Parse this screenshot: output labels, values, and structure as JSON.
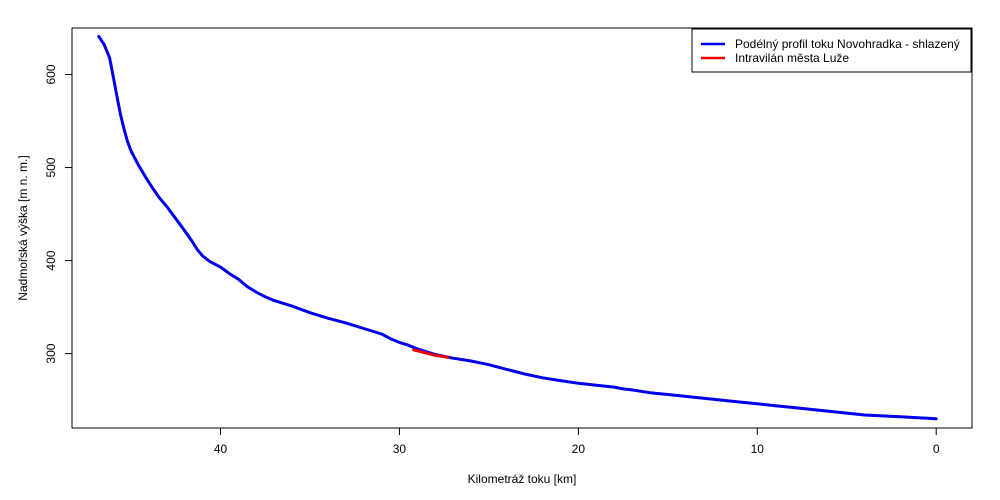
{
  "chart_data": {
    "type": "line",
    "title": "",
    "xlabel": "Kilometráž toku [km]",
    "ylabel": "Nadmořská výška [m n. m.]",
    "xlim": [
      48.3,
      -2.0
    ],
    "ylim": [
      220,
      650
    ],
    "x_reversed": true,
    "x_ticks": [
      40,
      30,
      20,
      10,
      0
    ],
    "y_ticks": [
      300,
      400,
      500,
      600
    ],
    "grid": false,
    "legend_position": "top-right",
    "series": [
      {
        "name": "Podélný profil toku Novohradka - shlazený",
        "color": "#0000ee",
        "x": [
          46.8,
          46.5,
          46.2,
          46.0,
          45.8,
          45.6,
          45.4,
          45.2,
          45.0,
          44.6,
          44.2,
          43.8,
          43.4,
          43.0,
          42.5,
          42.0,
          41.6,
          41.3,
          41.0,
          40.6,
          40.0,
          39.5,
          39.0,
          38.5,
          38.0,
          37.5,
          37.0,
          36.0,
          35.0,
          34.0,
          33.0,
          32.0,
          31.0,
          30.5,
          30.0,
          29.5,
          29.0,
          28.5,
          28.0,
          27.5,
          27.0,
          26.0,
          25.0,
          24.0,
          23.0,
          22.0,
          21.0,
          20.0,
          19.0,
          18.0,
          17.5,
          17.0,
          16.0,
          15.0,
          14.0,
          13.0,
          12.0,
          11.0,
          10.0,
          9.0,
          8.0,
          7.0,
          6.0,
          5.0,
          4.0,
          3.0,
          2.0,
          1.0,
          0.0
        ],
        "y": [
          641,
          632,
          618,
          598,
          578,
          558,
          542,
          528,
          518,
          503,
          490,
          478,
          467,
          458,
          445,
          432,
          421,
          412,
          405,
          399,
          393,
          386,
          380,
          372,
          366,
          361,
          357,
          351,
          344,
          338,
          333,
          327,
          321,
          316,
          312,
          309,
          305,
          302,
          299,
          297,
          295,
          292,
          288,
          283,
          278,
          274,
          271,
          268,
          266,
          264,
          262,
          261,
          258,
          256,
          254,
          252,
          250,
          248,
          246,
          244,
          242,
          240,
          238,
          236,
          234,
          233,
          232,
          231,
          230
        ]
      },
      {
        "name": "Intravilán města Luže",
        "color": "#ee0000",
        "x": [
          29.2,
          28.8,
          28.4,
          28.0,
          27.6,
          27.3
        ],
        "y": [
          304,
          302,
          300,
          298,
          297,
          296
        ]
      }
    ]
  }
}
